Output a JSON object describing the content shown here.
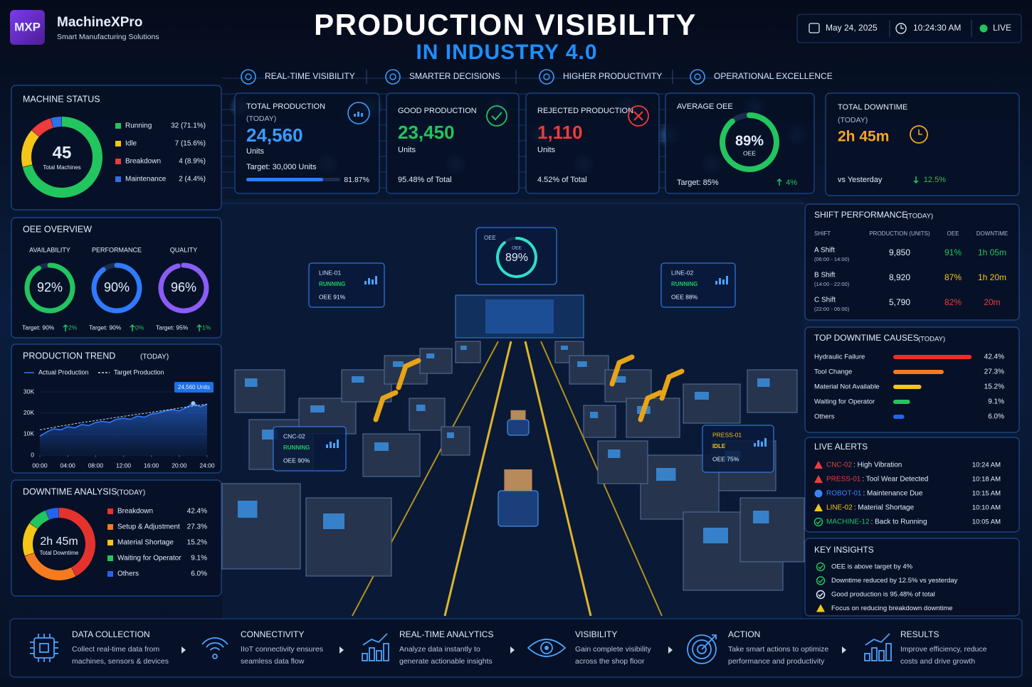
{
  "header": {
    "logo": "MXP",
    "brand": "MachineXPro",
    "tagline": "Smart Manufacturing Solutions",
    "title": "PRODUCTION VISIBILITY",
    "subtitle": "IN INDUSTRY 4.0",
    "date": "May 24, 2025",
    "time": "10:24:30 AM",
    "status": "LIVE"
  },
  "pillars": [
    "REAL-TIME VISIBILITY",
    "SMARTER DECISIONS",
    "HIGHER PRODUCTIVITY",
    "OPERATIONAL EXCELLENCE"
  ],
  "machine_status": {
    "title": "MACHINE STATUS",
    "total": "45",
    "total_label": "Total Machines",
    "items": [
      {
        "name": "Running",
        "color": "#22c55e",
        "value": 32,
        "label": "32 (71.1%)"
      },
      {
        "name": "Idle",
        "color": "#f5c518",
        "value": 7,
        "label": "7 (15.6%)"
      },
      {
        "name": "Breakdown",
        "color": "#ef3b3b",
        "value": 4,
        "label": "4 (8.9%)"
      },
      {
        "name": "Maintenance",
        "color": "#2f6fe8",
        "value": 2,
        "label": "2 (4.4%)"
      }
    ]
  },
  "kpis": [
    {
      "title": "TOTAL PRODUCTION",
      "qualifier": "(TODAY)",
      "value": "24,560",
      "unit": "Units",
      "note": "Target: 30,000 Units",
      "progress": 81.87,
      "progress_label": "81.87%",
      "color": "#3b9cff"
    },
    {
      "title": "GOOD PRODUCTION",
      "value": "23,450",
      "unit": "Units",
      "note": "95.48% of Total",
      "color": "#22c55e"
    },
    {
      "title": "REJECTED PRODUCTION",
      "value": "1,110",
      "unit": "Units",
      "note": "4.52% of Total",
      "color": "#ef3b3b"
    },
    {
      "title": "AVERAGE OEE",
      "value": 89,
      "value_label": "89%",
      "unit": "OEE",
      "note": "Target: 85%",
      "change": "4%",
      "color": "#22c55e"
    },
    {
      "title": "TOTAL DOWNTIME",
      "qualifier": "(TODAY)",
      "value": "2h 45m",
      "note": "vs Yesterday",
      "change": "12.5%",
      "color": "#f5a623"
    }
  ],
  "oee_overview": {
    "title": "OEE OVERVIEW",
    "gauges": [
      {
        "name": "AVAILABILITY",
        "value": 92,
        "label": "92%",
        "target": "Target: 90%",
        "change": "2%",
        "color": "#22c55e"
      },
      {
        "name": "PERFORMANCE",
        "value": 90,
        "label": "90%",
        "target": "Target: 90%",
        "change": "0%",
        "color": "#2f7bff"
      },
      {
        "name": "QUALITY",
        "value": 96,
        "label": "96%",
        "target": "Target: 95%",
        "change": "1%",
        "color": "#8b5cf6"
      }
    ]
  },
  "production_trend": {
    "title": "PRODUCTION TREND",
    "qualifier": "(TODAY)",
    "callout": "24,560 Units",
    "x": [
      0,
      1,
      2,
      3,
      4,
      5,
      6,
      7,
      8,
      9,
      10,
      11,
      12,
      13,
      14,
      15,
      16,
      17,
      18,
      19,
      20,
      21,
      22,
      23,
      24
    ],
    "xlim": [
      0,
      24
    ],
    "xticks": [
      {
        "value": 0,
        "label": "00:00"
      },
      {
        "value": 4,
        "label": "04:00"
      },
      {
        "value": 8,
        "label": "08:00"
      },
      {
        "value": 12,
        "label": "12:00"
      },
      {
        "value": 16,
        "label": "16:00"
      },
      {
        "value": 20,
        "label": "20:00"
      },
      {
        "value": 24,
        "label": "24:00"
      }
    ],
    "ylim": [
      0,
      30000
    ],
    "yticks": [
      0,
      {
        "value": 10000,
        "label": "10K"
      },
      {
        "value": 20000,
        "label": "20K"
      },
      {
        "value": 30000,
        "label": "30K"
      }
    ],
    "series": [
      {
        "name": "Actual Production",
        "color": "#2f7bff",
        "values": [
          9000,
          11000,
          12500,
          12000,
          13500,
          13000,
          14500,
          14000,
          15500,
          16000,
          15500,
          17000,
          17500,
          17000,
          18500,
          18000,
          19500,
          20000,
          21000,
          21500,
          21000,
          22500,
          24560,
          23000,
          24000
        ]
      },
      {
        "name": "Target Production",
        "color": "#cfd8e6",
        "values": [
          12000,
          12600,
          13200,
          13800,
          14300,
          14900,
          15400,
          15900,
          16400,
          16900,
          17400,
          17900,
          18400,
          18900,
          19400,
          19800,
          20300,
          20800,
          21300,
          21800,
          22300,
          22800,
          23300,
          23700,
          24200
        ]
      }
    ]
  },
  "downtime_analysis": {
    "title": "DOWNTIME ANALYSIS",
    "qualifier": "(TODAY)",
    "total": "2h 45m",
    "total_label": "Total Downtime",
    "items": [
      {
        "name": "Breakdown",
        "color": "#e5322d",
        "value": 42.4,
        "label": "42.4%"
      },
      {
        "name": "Setup & Adjustment",
        "color": "#f47b20",
        "value": 27.3,
        "label": "27.3%"
      },
      {
        "name": "Material Shortage",
        "color": "#f5c518",
        "value": 15.2,
        "label": "15.2%"
      },
      {
        "name": "Waiting for Operator",
        "color": "#22c55e",
        "value": 9.1,
        "label": "9.1%"
      },
      {
        "name": "Others",
        "color": "#2563eb",
        "value": 6.0,
        "label": "6.0%"
      }
    ]
  },
  "floor_oee": {
    "label": "OEE",
    "sub": "OEE",
    "value": 89,
    "value_label": "89%"
  },
  "floor_tags": [
    {
      "name": "LINE-01",
      "status": "RUNNING",
      "oee": "OEE 91%",
      "color": "#22c55e"
    },
    {
      "name": "LINE-02",
      "status": "RUNNING",
      "oee": "OEE 88%",
      "color": "#22c55e"
    },
    {
      "name": "CNC-02",
      "status": "RUNNING",
      "oee": "OEE 90%",
      "color": "#22c55e"
    },
    {
      "name": "PRESS-01",
      "status": "IDLE",
      "oee": "OEE 75%",
      "color": "#f5c518"
    }
  ],
  "shift_performance": {
    "title": "SHIFT PERFORMANCE",
    "qualifier": "(TODAY)",
    "columns": [
      "SHIFT",
      "PRODUCTION (UNITS)",
      "OEE",
      "DOWNTIME"
    ],
    "rows": [
      {
        "shift": "A Shift",
        "hours": "(06:00 - 14:00)",
        "production": "9,850",
        "oee": "91%",
        "downtime": "1h 05m",
        "oee_color": "#22c55e",
        "downtime_color": "#22c55e"
      },
      {
        "shift": "B Shift",
        "hours": "(14:00 - 22:00)",
        "production": "8,920",
        "oee": "87%",
        "downtime": "1h 20m",
        "oee_color": "#f5c518",
        "downtime_color": "#f5c518"
      },
      {
        "shift": "C Shift",
        "hours": "(22:00 - 06:00)",
        "production": "5,790",
        "oee": "82%",
        "downtime": "20m",
        "oee_color": "#ef3b3b",
        "downtime_color": "#ef3b3b"
      }
    ]
  },
  "downtime_causes": {
    "title": "TOP DOWNTIME CAUSES",
    "qualifier": "(TODAY)",
    "items": [
      {
        "name": "Hydraulic Failure",
        "color": "#ef2b2b",
        "value": 42.4,
        "label": "42.4%"
      },
      {
        "name": "Tool Change",
        "color": "#f47b20",
        "value": 27.3,
        "label": "27.3%"
      },
      {
        "name": "Material Not Available",
        "color": "#f5c518",
        "value": 15.2,
        "label": "15.2%"
      },
      {
        "name": "Waiting for Operator",
        "color": "#22c55e",
        "value": 9.1,
        "label": "9.1%"
      },
      {
        "name": "Others",
        "color": "#2563eb",
        "value": 6.0,
        "label": "6.0%"
      }
    ]
  },
  "live_alerts": {
    "title": "LIVE ALERTS",
    "items": [
      {
        "source": "CNC-02",
        "message": ": High Vibration",
        "time": "10:24 AM",
        "icon": "warning",
        "color": "#ef3b3b"
      },
      {
        "source": "PRESS-01",
        "message": ": Tool Wear Detected",
        "time": "10:18 AM",
        "icon": "warning",
        "color": "#ef3b3b"
      },
      {
        "source": "ROBOT-01",
        "message": ": Maintenance Due",
        "time": "10:15 AM",
        "icon": "info",
        "color": "#3b82f6"
      },
      {
        "source": "LINE-02",
        "message": ": Material Shortage",
        "time": "10:10 AM",
        "icon": "warning",
        "color": "#f5c518"
      },
      {
        "source": "MACHINE-12",
        "message": ": Back to Running",
        "time": "10:05 AM",
        "icon": "check",
        "color": "#22c55e"
      }
    ]
  },
  "key_insights": {
    "title": "KEY INSIGHTS",
    "items": [
      {
        "text": "OEE is above target by 4%",
        "icon": "check",
        "color": "#22c55e"
      },
      {
        "text": "Downtime reduced by 12.5% vs yesterday",
        "icon": "check",
        "color": "#22c55e"
      },
      {
        "text": "Good production is 95.48% of total",
        "icon": "check",
        "color": "#e6eefc"
      },
      {
        "text": "Focus on reducing breakdown downtime",
        "icon": "warning",
        "color": "#f5c518"
      }
    ]
  },
  "flow": [
    {
      "title": "DATA COLLECTION",
      "lines": [
        "Collect real-time data from",
        "machines, sensors & devices"
      ]
    },
    {
      "title": "CONNECTIVITY",
      "lines": [
        "IIoT connectivity ensures",
        "seamless data flow"
      ]
    },
    {
      "title": "REAL-TIME ANALYTICS",
      "lines": [
        "Analyze data instantly to",
        "generate actionable insights"
      ]
    },
    {
      "title": "VISIBILITY",
      "lines": [
        "Gain complete visibility",
        "across the shop floor"
      ]
    },
    {
      "title": "ACTION",
      "lines": [
        "Take smart actions to optimize",
        "performance and productivity"
      ]
    },
    {
      "title": "RESULTS",
      "lines": [
        "Improve efficiency, reduce",
        "costs and drive growth"
      ]
    }
  ]
}
